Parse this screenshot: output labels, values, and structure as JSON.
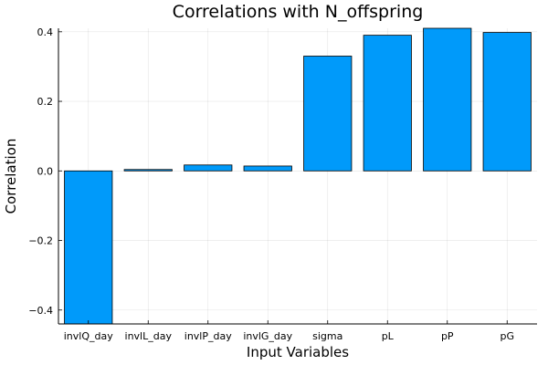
{
  "chart_data": {
    "type": "bar",
    "title": "Correlations with N_offspring",
    "xlabel": "Input Variables",
    "ylabel": "Correlation",
    "categories": [
      "invlQ_day",
      "invlL_day",
      "invlP_day",
      "invlG_day",
      "sigma",
      "pL",
      "pP",
      "pG"
    ],
    "values": [
      -0.44,
      0.004,
      0.017,
      0.014,
      0.33,
      0.39,
      0.41,
      0.398
    ],
    "ylim": [
      -0.44,
      0.41
    ],
    "yticks": [
      -0.4,
      -0.2,
      0.0,
      0.2,
      0.4
    ],
    "ytick_labels": [
      "−0.4",
      "−0.2",
      "0.0",
      "0.2",
      "0.4"
    ],
    "grid": true,
    "bar_color": "#009AFA"
  }
}
